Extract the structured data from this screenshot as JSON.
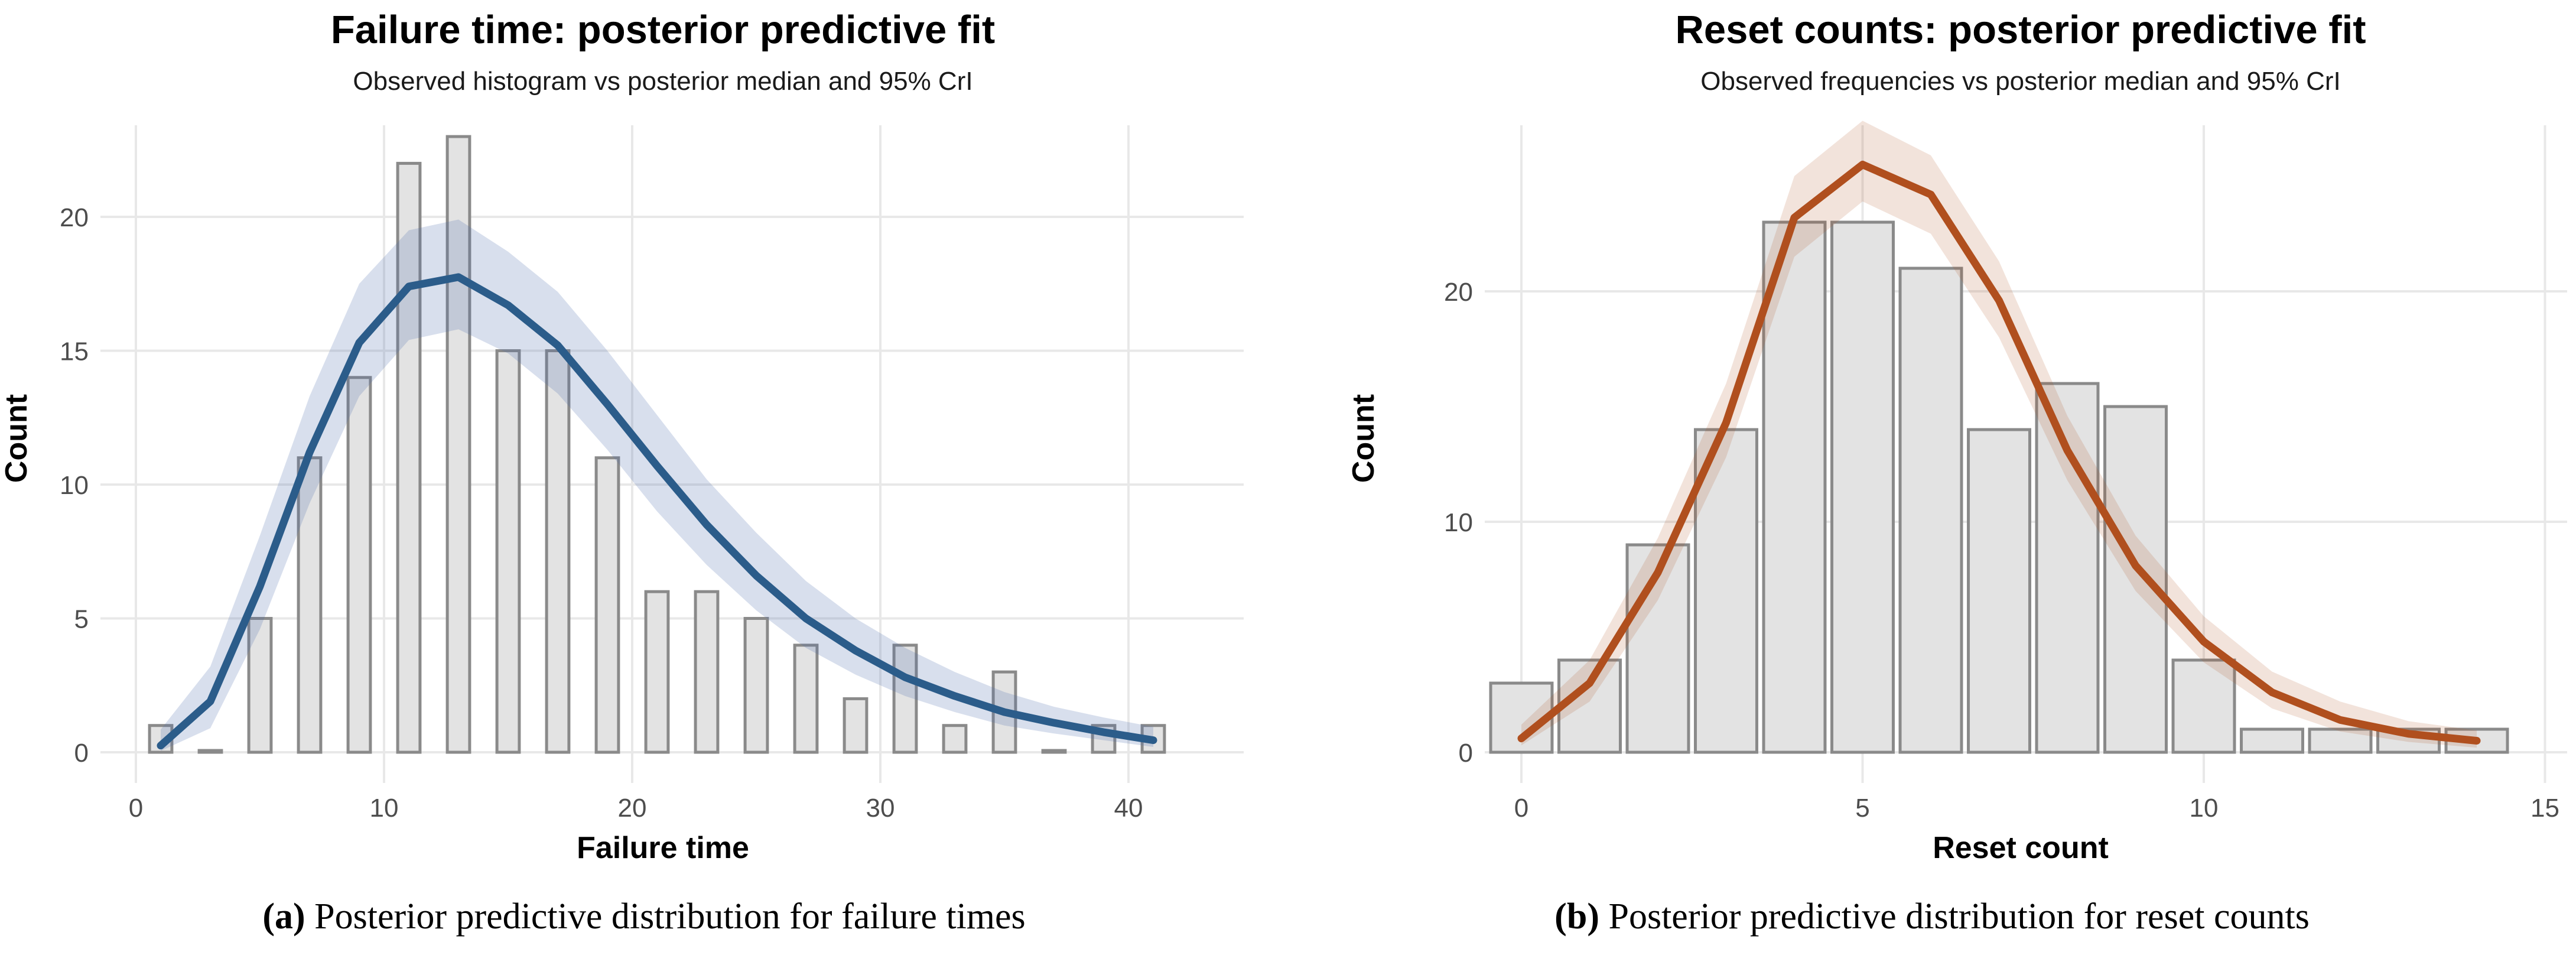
{
  "figure": {
    "captions": [
      {
        "paren_open": "(",
        "label": "a",
        "paren_close": ")",
        "text": " Posterior predictive distribution for failure times"
      },
      {
        "paren_open": "(",
        "label": "b",
        "paren_close": ")",
        "text": " Posterior predictive distribution for reset counts"
      }
    ]
  },
  "chart_data": [
    {
      "type": "bar",
      "subtype": "histogram with posterior median line and 95% credible ribbon",
      "panel": "a",
      "title": "Failure time: posterior predictive fit",
      "subtitle": "Observed histogram vs posterior median and 95% CrI",
      "xlabel": "Failure time",
      "ylabel": "Count",
      "x_ticks": [
        0,
        10,
        20,
        30,
        40
      ],
      "y_ticks": [
        0,
        5,
        10,
        15,
        20
      ],
      "xlim": [
        -1.5,
        44.5
      ],
      "ylim": [
        0,
        23.4
      ],
      "grid": "major gridlines only, light gray, white background",
      "legend_position": "none",
      "bar_width": 0.9,
      "bars": {
        "x": [
          1,
          3,
          5,
          7,
          9,
          11,
          13,
          15,
          17,
          19,
          21,
          23,
          25,
          27,
          29,
          31,
          33,
          35,
          37,
          39,
          41
        ],
        "counts": [
          1,
          0,
          5,
          11,
          14,
          22,
          23,
          15,
          15,
          11,
          6,
          6,
          5,
          4,
          2,
          4,
          1,
          3,
          0,
          1,
          1
        ]
      },
      "line": {
        "x": [
          1,
          3,
          5,
          7,
          9,
          11,
          13,
          15,
          17,
          19,
          21,
          23,
          25,
          27,
          29,
          31,
          33,
          35,
          37,
          39,
          41
        ],
        "median": [
          0.25,
          1.9,
          6.2,
          11.2,
          15.3,
          17.4,
          17.75,
          16.7,
          15.2,
          13.0,
          10.7,
          8.5,
          6.6,
          5.0,
          3.8,
          2.8,
          2.1,
          1.5,
          1.1,
          0.75,
          0.45
        ],
        "lower": [
          0.05,
          0.9,
          4.6,
          9.3,
          13.3,
          15.4,
          15.8,
          14.9,
          13.4,
          11.3,
          9.0,
          7.0,
          5.3,
          3.9,
          2.9,
          2.1,
          1.5,
          1.0,
          0.7,
          0.45,
          0.2
        ],
        "upper": [
          0.85,
          3.2,
          8.1,
          13.3,
          17.5,
          19.5,
          19.9,
          18.7,
          17.2,
          15.0,
          12.6,
          10.2,
          8.2,
          6.4,
          5.0,
          3.9,
          3.0,
          2.25,
          1.7,
          1.3,
          0.95
        ]
      },
      "colors": {
        "line": "#2B5C8A",
        "band": "rgba(78,108,172,0.22)",
        "bar_fill": "#E3E3E3",
        "bar_stroke": "#8A8A8A",
        "gridline": "#E8E8E8",
        "tick": "#DEDEDE",
        "tick_text": "#4d4d4d"
      }
    },
    {
      "type": "bar",
      "subtype": "frequency bars with posterior median line and 95% credible ribbon",
      "panel": "b",
      "title": "Reset counts: posterior predictive fit",
      "subtitle": "Observed frequencies vs posterior median and 95% CrI",
      "xlabel": "Reset count",
      "ylabel": "Count",
      "x_ticks": [
        0,
        5,
        10,
        15
      ],
      "y_ticks": [
        0,
        10,
        20
      ],
      "xlim": [
        -0.8,
        15.3
      ],
      "ylim": [
        0,
        27.5
      ],
      "grid": "major gridlines only, light gray, white background",
      "legend_position": "none",
      "bar_width": 0.9,
      "bars": {
        "x": [
          0,
          1,
          2,
          3,
          4,
          5,
          6,
          7,
          8,
          9,
          10,
          11,
          12,
          13,
          14
        ],
        "counts": [
          3,
          4,
          9,
          14,
          23,
          23,
          21,
          14,
          16,
          15,
          4,
          1,
          1,
          1,
          1
        ]
      },
      "line": {
        "x": [
          0,
          1,
          2,
          3,
          4,
          5,
          6,
          7,
          8,
          9,
          10,
          11,
          12,
          13,
          14
        ],
        "median": [
          0.6,
          3.0,
          7.8,
          14.3,
          23.2,
          25.5,
          24.2,
          19.6,
          13.1,
          8.1,
          4.8,
          2.6,
          1.4,
          0.8,
          0.5
        ],
        "lower": [
          0.3,
          2.2,
          6.6,
          12.8,
          21.5,
          23.9,
          22.5,
          18.0,
          11.8,
          7.0,
          3.9,
          1.9,
          0.9,
          0.45,
          0.2
        ],
        "upper": [
          1.2,
          4.0,
          9.3,
          16.0,
          25.0,
          27.4,
          25.9,
          21.3,
          14.6,
          9.4,
          5.9,
          3.5,
          2.2,
          1.35,
          0.95
        ]
      },
      "colors": {
        "line": "#B04F1E",
        "band": "rgba(176,79,30,0.16)",
        "bar_fill": "#E3E3E3",
        "bar_stroke": "#8A8A8A",
        "gridline": "#E8E8E8",
        "tick": "#DEDEDE",
        "tick_text": "#4d4d4d"
      }
    }
  ]
}
